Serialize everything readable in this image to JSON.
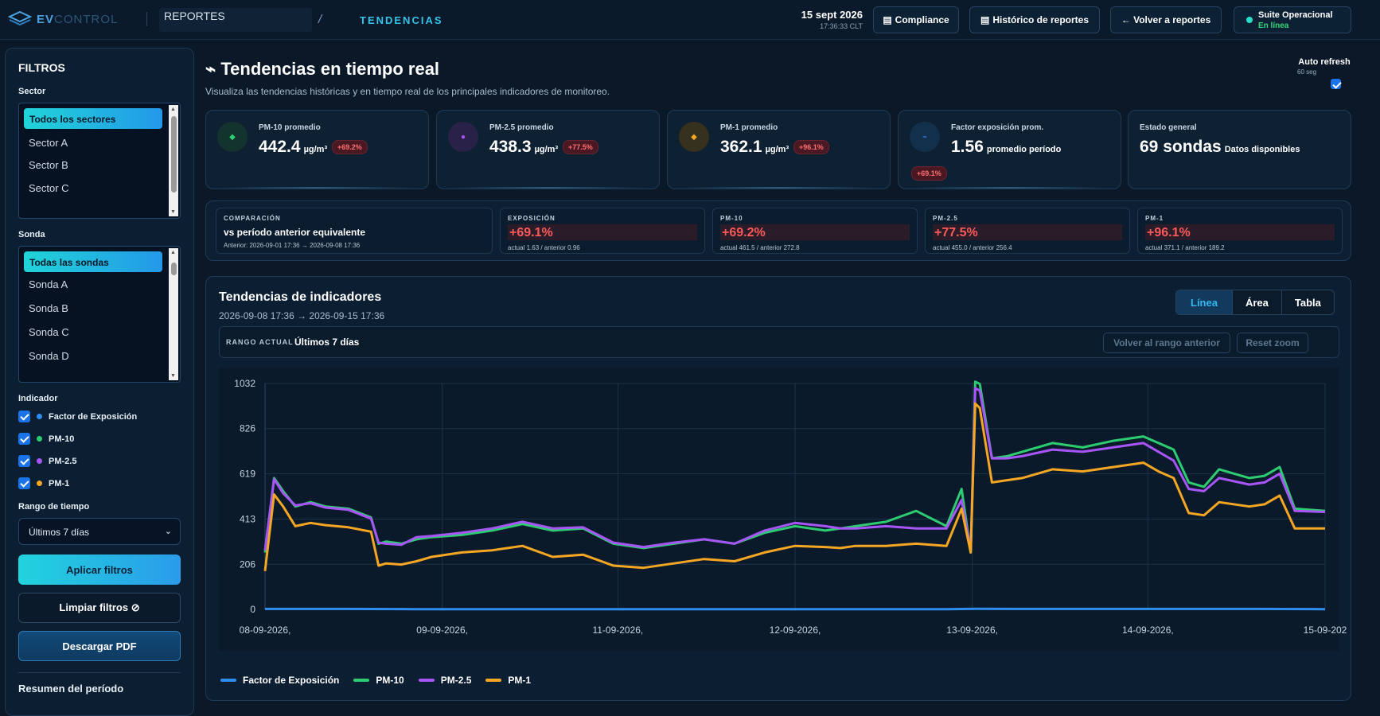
{
  "topbar": {
    "logo_strong": "EV",
    "logo_dim": "CONTROL",
    "breadcrumb_section": "REPORTES",
    "breadcrumb_sep": "/",
    "breadcrumb_page": "TENDENCIAS",
    "date": "15 sept 2026",
    "time": "17:36:33 CLT",
    "btn_compliance": "Compliance",
    "btn_historico": "Histórico de reportes",
    "btn_volver": "← Volver a reportes",
    "suite_name": "Suite Operacional",
    "suite_status": "En línea"
  },
  "sidebar": {
    "title": "FILTROS",
    "sector_label": "Sector",
    "sector_items": [
      "Todos los sectores",
      "Sector A",
      "Sector B",
      "Sector C"
    ],
    "sonda_label": "Sonda",
    "sonda_items": [
      "Todas las sondas",
      "Sonda A",
      "Sonda B",
      "Sonda C",
      "Sonda D"
    ],
    "indicador_label": "Indicador",
    "indicators": [
      {
        "label": "Factor de Exposición",
        "color": "#2e8ef0"
      },
      {
        "label": "PM-10",
        "color": "#2ecc71"
      },
      {
        "label": "PM-2.5",
        "color": "#a855f7"
      },
      {
        "label": "PM-1",
        "color": "#f5a623"
      }
    ],
    "rango_label": "Rango de tiempo",
    "rango_value": "Últimos 7 días",
    "btn_apply": "Aplicar filtros",
    "btn_clear": "Limpiar filtros ⊘",
    "btn_pdf": "Descargar PDF",
    "summary_title": "Resumen del período"
  },
  "header": {
    "title": "⌁ Tendencias en tiempo real",
    "subtitle": "Visualiza las tendencias históricas y en tiempo real de los principales indicadores de monitoreo.",
    "auto_refresh": "Auto refresh",
    "auto_refresh_interval": "60 seg"
  },
  "kpis": [
    {
      "label": "PM-10 promedio",
      "value": "442.4",
      "unit": "µg/m³",
      "change": "+69.2%",
      "icon": "◆",
      "color": "#2ecc71"
    },
    {
      "label": "PM-2.5 promedio",
      "value": "438.3",
      "unit": "µg/m³",
      "change": "+77.5%",
      "icon": "●",
      "color": "#a855f7"
    },
    {
      "label": "PM-1 promedio",
      "value": "362.1",
      "unit": "µg/m³",
      "change": "+96.1%",
      "icon": "◆",
      "color": "#f5a623"
    },
    {
      "label": "Factor exposición prom.",
      "value": "1.56",
      "unit": "promedio período",
      "change": "+69.1%",
      "icon": "⌁",
      "color": "#2e8ef0"
    },
    {
      "label": "Estado general",
      "value": "69 sondas",
      "unit": "Datos disponibles",
      "change": "",
      "icon": "",
      "color": ""
    }
  ],
  "comparison": {
    "kicker": "COMPARACIÓN",
    "title": "vs período anterior equivalente",
    "detail": "Anterior: 2026-09-01 17:36 → 2026-09-08 17:36",
    "cards": [
      {
        "label": "EXPOSICIÓN",
        "change": "+69.1%",
        "detail": "actual 1.63 / anterior 0.96"
      },
      {
        "label": "PM-10",
        "change": "+69.2%",
        "detail": "actual 461.5 / anterior 272.8"
      },
      {
        "label": "PM-2.5",
        "change": "+77.5%",
        "detail": "actual 455.0 / anterior 256.4"
      },
      {
        "label": "PM-1",
        "change": "+96.1%",
        "detail": "actual 371.1 / anterior 189.2"
      }
    ]
  },
  "chart_panel": {
    "title": "Tendencias de indicadores",
    "range": "2026-09-08 17:36 → 2026-09-15 17:36",
    "tabs": [
      "Línea",
      "Área",
      "Tabla"
    ],
    "active_tab": "Línea",
    "range_kicker": "RANGO ACTUAL",
    "range_value": "Últimos 7 días",
    "btn_prev": "Volver al rango anterior",
    "btn_reset": "Reset zoom"
  },
  "chart_data": {
    "type": "line",
    "yticks": [
      0,
      206,
      413,
      619,
      826,
      1032
    ],
    "ylim": [
      0,
      1032
    ],
    "xlim": [
      0,
      7
    ],
    "xtick_labels": [
      "08-09-2026,",
      "09-09-2026,",
      "11-09-2026,",
      "12-09-2026,",
      "13-09-2026,",
      "14-09-2026,",
      "15-09-202"
    ],
    "xtick_positions": [
      0,
      1.17,
      2.33,
      3.5,
      4.67,
      5.83,
      7
    ],
    "grid": true,
    "legend": "bottom-left",
    "series": [
      {
        "name": "Factor de Exposición",
        "color": "#2e8ef0",
        "x": [
          0,
          0.5,
          1,
          1.5,
          2,
          2.5,
          3,
          3.5,
          4,
          4.5,
          4.69,
          5,
          5.5,
          6,
          6.5,
          7
        ],
        "y": [
          2,
          2,
          1,
          1,
          1,
          1,
          1,
          1,
          1,
          1,
          3,
          2,
          2,
          2,
          2,
          1
        ]
      },
      {
        "name": "PM-10",
        "color": "#2ecc71",
        "x": [
          0,
          0.06,
          0.12,
          0.2,
          0.3,
          0.4,
          0.55,
          0.7,
          0.75,
          0.8,
          0.9,
          1.0,
          1.1,
          1.3,
          1.5,
          1.7,
          1.9,
          2.1,
          2.3,
          2.5,
          2.7,
          2.9,
          3.1,
          3.3,
          3.5,
          3.7,
          3.8,
          3.9,
          4.1,
          4.3,
          4.5,
          4.6,
          4.66,
          4.69,
          4.72,
          4.8,
          4.9,
          5.0,
          5.2,
          5.4,
          5.6,
          5.8,
          5.9,
          6.0,
          6.1,
          6.2,
          6.3,
          6.5,
          6.6,
          6.7,
          6.8,
          7.0
        ],
        "y": [
          260,
          600,
          540,
          470,
          490,
          470,
          460,
          420,
          300,
          310,
          300,
          320,
          330,
          340,
          360,
          390,
          360,
          370,
          300,
          280,
          300,
          320,
          300,
          350,
          380,
          360,
          370,
          380,
          400,
          450,
          380,
          550,
          260,
          1040,
          1030,
          690,
          700,
          720,
          760,
          740,
          770,
          790,
          760,
          730,
          580,
          560,
          640,
          600,
          610,
          650,
          460,
          450
        ]
      },
      {
        "name": "PM-2.5",
        "color": "#a855f7",
        "x": [
          0,
          0.06,
          0.12,
          0.2,
          0.3,
          0.4,
          0.55,
          0.7,
          0.75,
          0.8,
          0.9,
          1.0,
          1.1,
          1.3,
          1.5,
          1.7,
          1.9,
          2.1,
          2.3,
          2.5,
          2.7,
          2.9,
          3.1,
          3.3,
          3.5,
          3.7,
          3.8,
          3.9,
          4.1,
          4.3,
          4.5,
          4.6,
          4.66,
          4.69,
          4.72,
          4.8,
          4.9,
          5.0,
          5.2,
          5.4,
          5.6,
          5.8,
          5.9,
          6.0,
          6.1,
          6.2,
          6.3,
          6.5,
          6.6,
          6.7,
          6.8,
          7.0
        ],
        "y": [
          270,
          595,
          530,
          475,
          485,
          465,
          455,
          415,
          305,
          300,
          295,
          330,
          335,
          350,
          370,
          400,
          370,
          375,
          305,
          285,
          305,
          320,
          300,
          360,
          395,
          380,
          370,
          370,
          380,
          370,
          370,
          500,
          270,
          1010,
          1000,
          690,
          690,
          700,
          730,
          720,
          740,
          760,
          720,
          680,
          550,
          540,
          600,
          570,
          580,
          620,
          450,
          445
        ]
      },
      {
        "name": "PM-1",
        "color": "#f5a623",
        "x": [
          0,
          0.06,
          0.12,
          0.2,
          0.3,
          0.4,
          0.55,
          0.7,
          0.75,
          0.8,
          0.9,
          1.0,
          1.1,
          1.3,
          1.5,
          1.7,
          1.9,
          2.1,
          2.3,
          2.5,
          2.7,
          2.9,
          3.1,
          3.3,
          3.5,
          3.7,
          3.8,
          3.9,
          4.1,
          4.3,
          4.5,
          4.6,
          4.66,
          4.69,
          4.72,
          4.8,
          4.9,
          5.0,
          5.2,
          5.4,
          5.6,
          5.8,
          5.9,
          6.0,
          6.1,
          6.2,
          6.3,
          6.5,
          6.6,
          6.7,
          6.8,
          7.0
        ],
        "y": [
          175,
          525,
          470,
          380,
          395,
          385,
          375,
          355,
          200,
          210,
          205,
          220,
          240,
          260,
          270,
          290,
          240,
          250,
          200,
          190,
          210,
          230,
          220,
          260,
          290,
          285,
          280,
          290,
          290,
          300,
          290,
          460,
          260,
          940,
          920,
          580,
          590,
          600,
          640,
          630,
          650,
          670,
          630,
          600,
          440,
          430,
          490,
          470,
          480,
          520,
          370,
          370
        ]
      }
    ]
  }
}
